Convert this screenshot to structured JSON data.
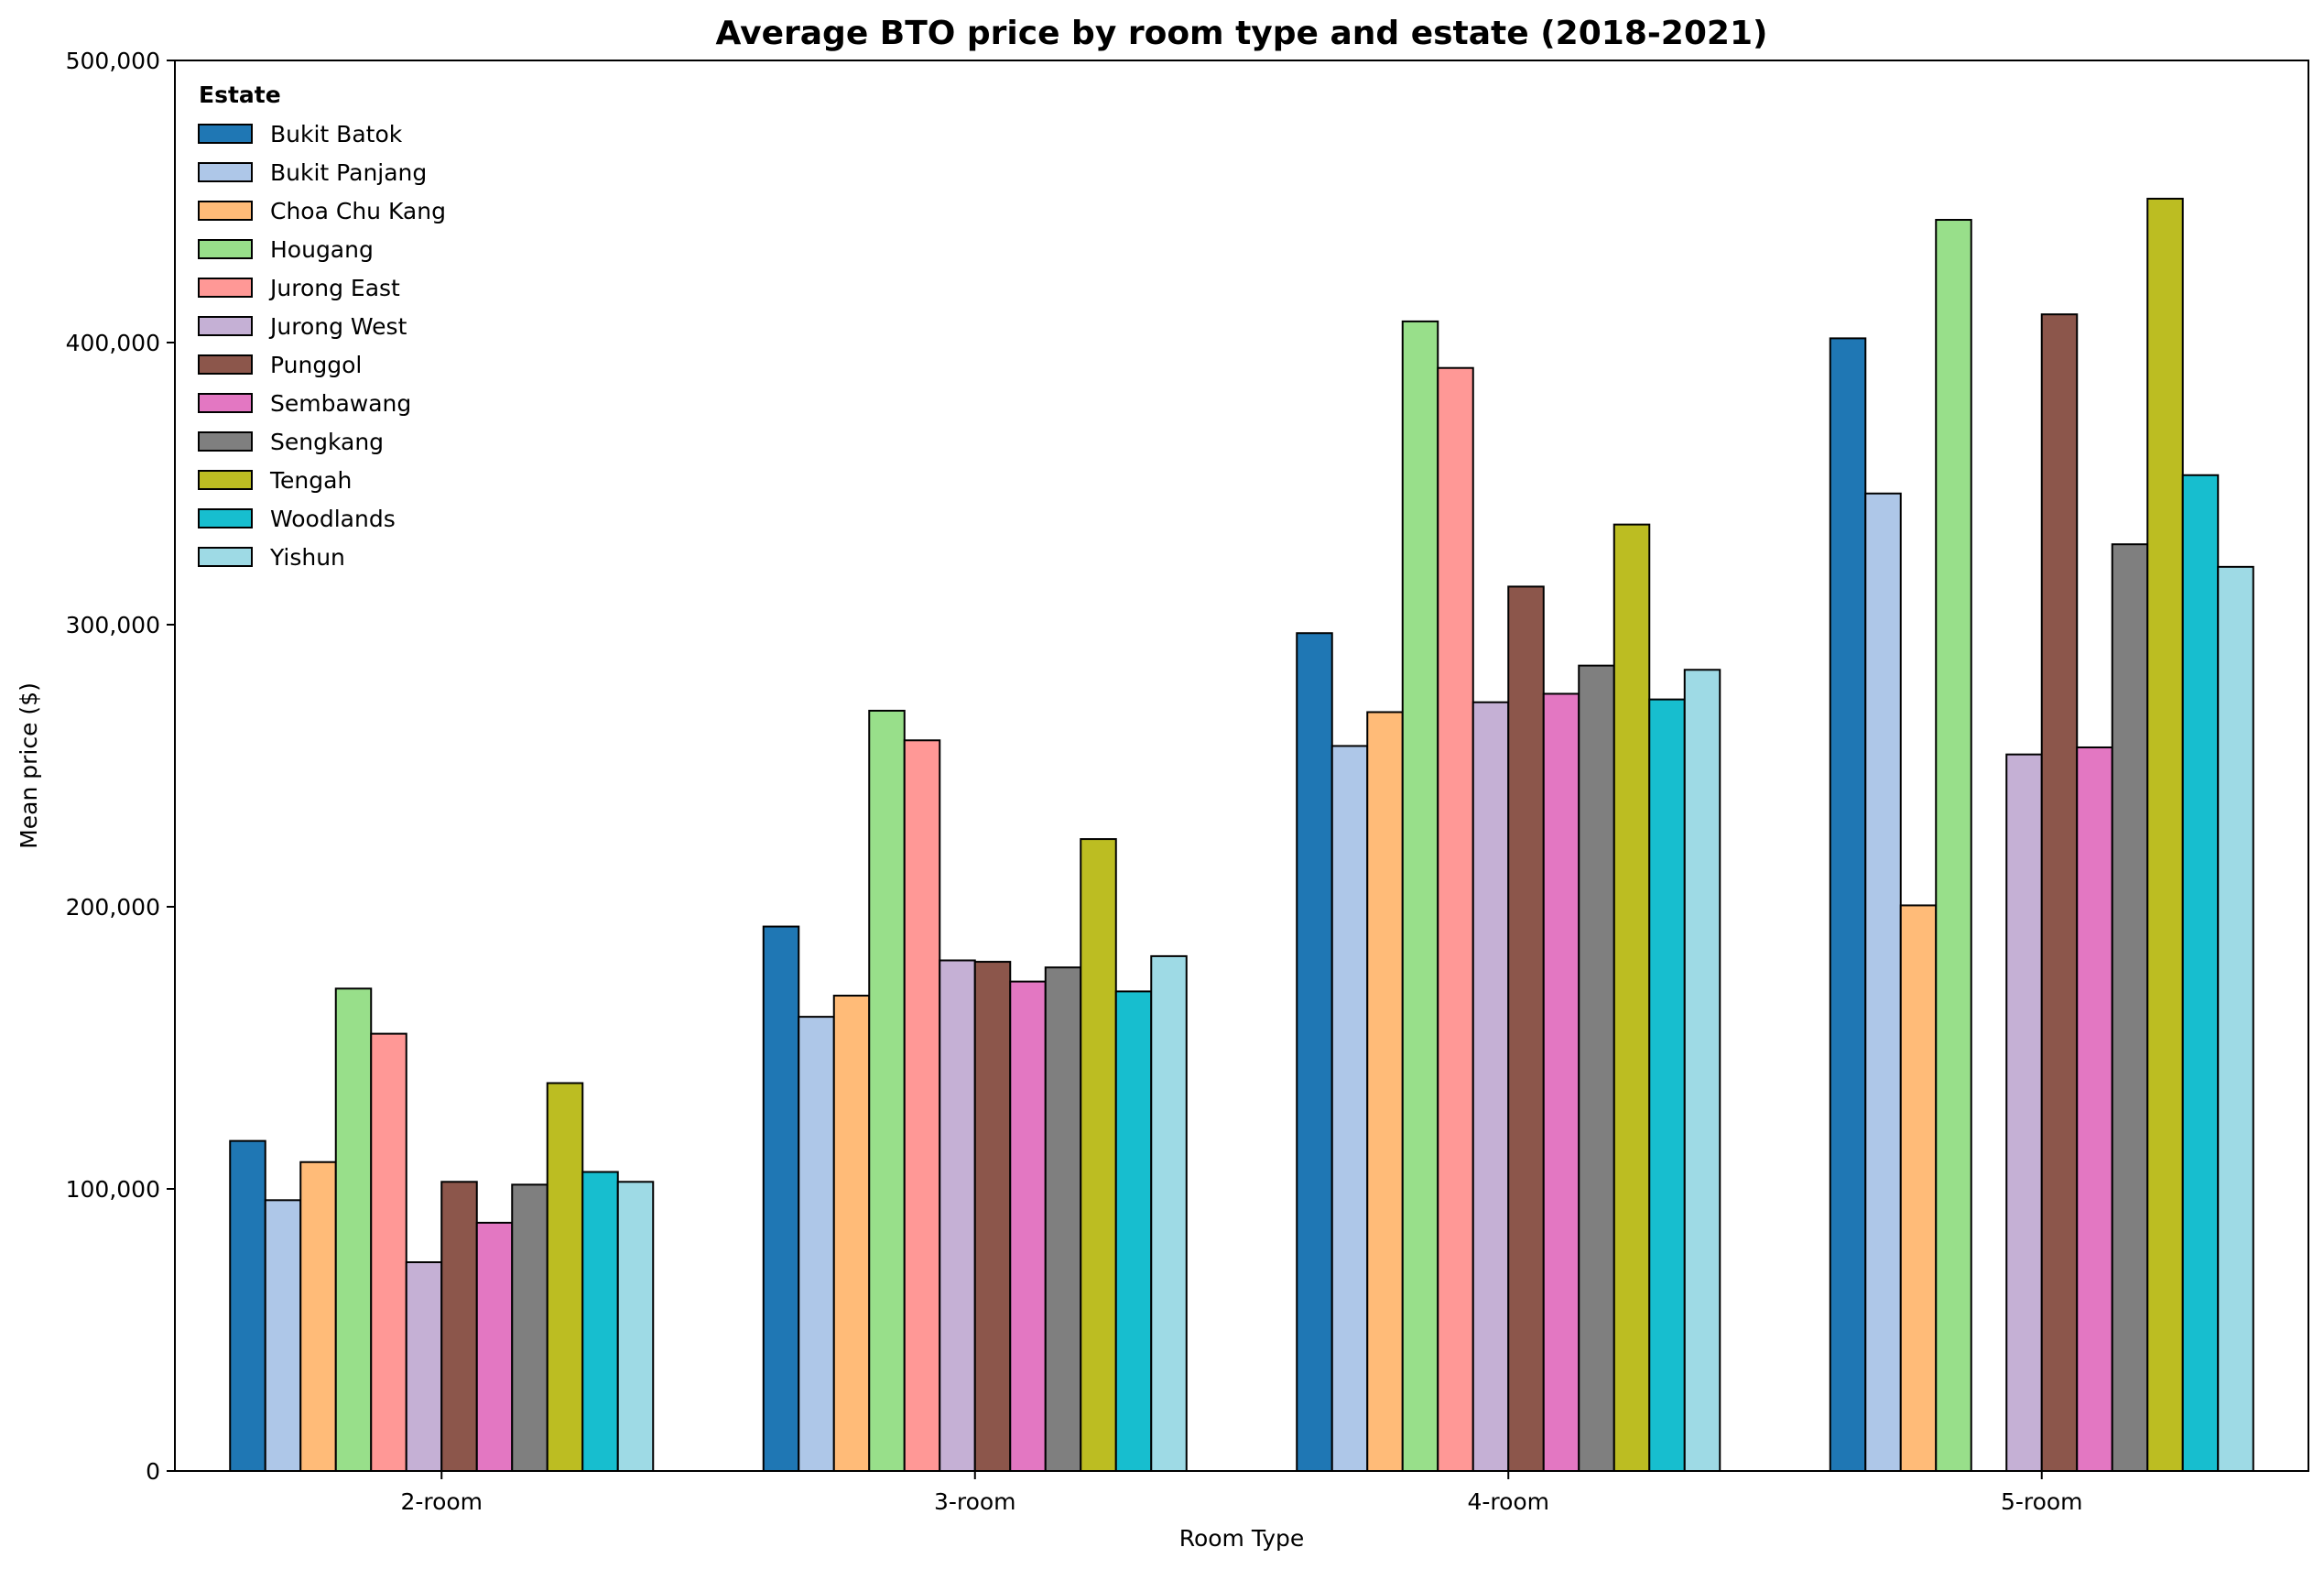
{
  "chart_data": {
    "type": "bar",
    "title": "Average BTO price by room type and estate (2018-2021)",
    "xlabel": "Room Type",
    "ylabel": "Mean price ($)",
    "ylim": [
      0,
      500000
    ],
    "yticks": [
      "0",
      "100,000",
      "200,000",
      "300,000",
      "400,000",
      "500,000"
    ],
    "ytick_values": [
      0,
      100000,
      200000,
      300000,
      400000,
      500000
    ],
    "categories": [
      "2-room",
      "3-room",
      "4-room",
      "5-room"
    ],
    "legend": {
      "title": "Estate",
      "placement": "top-left"
    },
    "grid": false,
    "series": [
      {
        "name": "Bukit Batok",
        "color": "#1f77b4",
        "values": [
          117000,
          193000,
          297000,
          401500
        ]
      },
      {
        "name": "Bukit Panjang",
        "color": "#aec7e8",
        "values": [
          96000,
          161000,
          257000,
          346500
        ]
      },
      {
        "name": "Choa Chu Kang",
        "color": "#ffbb78",
        "values": [
          109500,
          168500,
          269000,
          200500
        ]
      },
      {
        "name": "Hougang",
        "color": "#98df8a",
        "values": [
          171000,
          269500,
          407500,
          443500
        ]
      },
      {
        "name": "Jurong East",
        "color": "#ff9896",
        "values": [
          155000,
          259000,
          391000,
          null
        ]
      },
      {
        "name": "Jurong West",
        "color": "#c5b0d5",
        "values": [
          74000,
          181000,
          272500,
          254000
        ]
      },
      {
        "name": "Punggol",
        "color": "#8c564b",
        "values": [
          102500,
          180500,
          313500,
          410000
        ]
      },
      {
        "name": "Sembawang",
        "color": "#e377c2",
        "values": [
          88000,
          173500,
          275500,
          256500
        ]
      },
      {
        "name": "Sengkang",
        "color": "#7f7f7f",
        "values": [
          101500,
          178500,
          285500,
          328500
        ]
      },
      {
        "name": "Tengah",
        "color": "#bcbd22",
        "values": [
          137500,
          224000,
          335500,
          451000
        ]
      },
      {
        "name": "Woodlands",
        "color": "#17becf",
        "values": [
          106000,
          170000,
          273500,
          353000
        ]
      },
      {
        "name": "Yishun",
        "color": "#9edae5",
        "values": [
          102500,
          182500,
          284000,
          320500
        ]
      }
    ]
  }
}
